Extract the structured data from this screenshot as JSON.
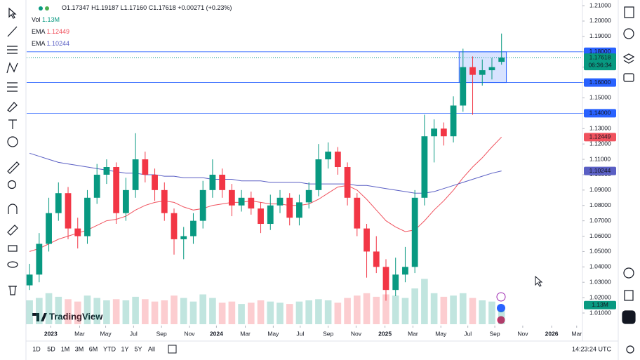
{
  "chart_data": {
    "type": "candlestick",
    "ohlc_letters": [
      "O",
      "H",
      "L",
      "C"
    ],
    "low_label": "1.17160",
    "change_label": "+0.00271 (+0.23%)",
    "volume_name": "Vol",
    "volume_label": "1.13M",
    "countdown": "06:36:34",
    "brand": "TradingView",
    "open": [
      1.028,
      1.035,
      1.055,
      1.075,
      1.088,
      1.065,
      1.06,
      1.085,
      1.1,
      1.105,
      1.075,
      1.09,
      1.11,
      1.1,
      1.09,
      1.075,
      1.058,
      1.06,
      1.07,
      1.09,
      1.1,
      1.09,
      1.08,
      1.085,
      1.078,
      1.068,
      1.08,
      1.085,
      1.072,
      1.082,
      1.09,
      1.11,
      1.115,
      1.105,
      1.085,
      1.065,
      1.05,
      1.04,
      1.025,
      1.035,
      1.04,
      1.085,
      1.125,
      1.13,
      1.125,
      1.145,
      1.17,
      1.165,
      1.168,
      1.17347
    ],
    "high": [
      1.042,
      1.062,
      1.085,
      1.095,
      1.092,
      1.072,
      1.09,
      1.107,
      1.11,
      1.108,
      1.098,
      1.127,
      1.115,
      1.104,
      1.095,
      1.078,
      1.066,
      1.075,
      1.096,
      1.11,
      1.104,
      1.094,
      1.09,
      1.089,
      1.082,
      1.087,
      1.09,
      1.088,
      1.087,
      1.095,
      1.12,
      1.121,
      1.118,
      1.108,
      1.088,
      1.068,
      1.06,
      1.045,
      1.046,
      1.053,
      1.09,
      1.139,
      1.136,
      1.134,
      1.151,
      1.182,
      1.177,
      1.175,
      1.176,
      1.19187
    ],
    "low": [
      1.025,
      1.03,
      1.05,
      1.07,
      1.058,
      1.052,
      1.055,
      1.081,
      1.094,
      1.068,
      1.07,
      1.085,
      1.095,
      1.083,
      1.07,
      1.048,
      1.045,
      1.055,
      1.065,
      1.085,
      1.085,
      1.073,
      1.076,
      1.074,
      1.062,
      1.064,
      1.075,
      1.067,
      1.067,
      1.078,
      1.086,
      1.104,
      1.1,
      1.08,
      1.06,
      1.033,
      1.036,
      1.018,
      1.021,
      1.03,
      1.036,
      1.08,
      1.108,
      1.119,
      1.121,
      1.141,
      1.139,
      1.158,
      1.162,
      1.1716
    ],
    "close": [
      1.035,
      1.055,
      1.075,
      1.088,
      1.065,
      1.06,
      1.085,
      1.1,
      1.105,
      1.075,
      1.09,
      1.11,
      1.1,
      1.09,
      1.075,
      1.058,
      1.06,
      1.07,
      1.09,
      1.1,
      1.09,
      1.08,
      1.085,
      1.078,
      1.068,
      1.08,
      1.085,
      1.072,
      1.082,
      1.09,
      1.11,
      1.115,
      1.105,
      1.085,
      1.065,
      1.05,
      1.04,
      1.025,
      1.035,
      1.04,
      1.085,
      1.125,
      1.13,
      1.125,
      1.145,
      1.17,
      1.165,
      1.168,
      1.17,
      1.17618
    ],
    "volume": [
      2.0,
      2.2,
      2.6,
      2.3,
      2.1,
      1.9,
      2.4,
      2.2,
      2.0,
      2.1,
      2.0,
      2.3,
      2.1,
      1.9,
      2.0,
      2.4,
      2.2,
      1.9,
      2.5,
      2.2,
      1.8,
      1.9,
      1.7,
      1.8,
      2.0,
      1.9,
      1.8,
      1.7,
      1.9,
      2.0,
      2.1,
      2.0,
      1.8,
      2.2,
      2.4,
      2.6,
      2.3,
      2.5,
      2.4,
      2.2,
      3.0,
      3.8,
      2.6,
      2.3,
      2.4,
      2.6,
      2.2,
      2.0,
      1.9,
      1.13
    ],
    "up_color": "#089981",
    "down_color": "#f23645",
    "series": [
      {
        "name": "EMA",
        "color": "#f0525e",
        "values": [
          1.05,
          1.052,
          1.055,
          1.058,
          1.06,
          1.062,
          1.064,
          1.067,
          1.07,
          1.071,
          1.073,
          1.077,
          1.08,
          1.082,
          1.083,
          1.082,
          1.079,
          1.077,
          1.078,
          1.08,
          1.081,
          1.082,
          1.082,
          1.083,
          1.082,
          1.081,
          1.081,
          1.08,
          1.08,
          1.081,
          1.084,
          1.088,
          1.092,
          1.093,
          1.09,
          1.084,
          1.077,
          1.07,
          1.066,
          1.063,
          1.064,
          1.07,
          1.077,
          1.083,
          1.09,
          1.098,
          1.105,
          1.111,
          1.118,
          1.12449
        ]
      },
      {
        "name": "EMA",
        "color": "#5a5fc4",
        "values": [
          1.114,
          1.112,
          1.11,
          1.108,
          1.107,
          1.106,
          1.105,
          1.104,
          1.103,
          1.102,
          1.101,
          1.101,
          1.1,
          1.1,
          1.099,
          1.099,
          1.098,
          1.098,
          1.098,
          1.097,
          1.097,
          1.097,
          1.096,
          1.096,
          1.096,
          1.095,
          1.095,
          1.095,
          1.095,
          1.094,
          1.094,
          1.094,
          1.094,
          1.094,
          1.093,
          1.093,
          1.092,
          1.091,
          1.09,
          1.089,
          1.088,
          1.088,
          1.089,
          1.091,
          1.093,
          1.095,
          1.097,
          1.099,
          1.101,
          1.10244
        ]
      }
    ],
    "hlines": [
      {
        "value": 1.18,
        "label": "1.18000"
      },
      {
        "value": 1.16,
        "label": "1.16000"
      },
      {
        "value": 1.14,
        "label": "1.14000"
      }
    ],
    "hline_color": "#2962ff",
    "box": {
      "x0": 44.6,
      "x1": 49.5,
      "y0": 1.16,
      "y1": 1.18
    },
    "xlim": [
      -0.3,
      57.4
    ],
    "ylim": [
      1.0027,
      1.2137
    ],
    "grid": false,
    "xticks": [
      {
        "value": 2.2,
        "label": "2023"
      },
      {
        "value": 5.2,
        "label": "Mar"
      },
      {
        "value": 7.9,
        "label": "May"
      },
      {
        "value": 10.8,
        "label": "Jul"
      },
      {
        "value": 13.7,
        "label": "Sep"
      },
      {
        "value": 16.6,
        "label": "Nov"
      },
      {
        "value": 19.4,
        "label": "2024"
      },
      {
        "value": 22.4,
        "label": "Mar"
      },
      {
        "value": 25.3,
        "label": "May"
      },
      {
        "value": 28.1,
        "label": "Jul"
      },
      {
        "value": 31.0,
        "label": "Sep"
      },
      {
        "value": 33.9,
        "label": "Nov"
      },
      {
        "value": 36.9,
        "label": "2025"
      },
      {
        "value": 39.8,
        "label": "Mar"
      },
      {
        "value": 42.7,
        "label": "May"
      },
      {
        "value": 45.5,
        "label": "Jul"
      },
      {
        "value": 48.3,
        "label": "Sep"
      },
      {
        "value": 51.2,
        "label": "Nov"
      },
      {
        "value": 54.2,
        "label": "2026"
      },
      {
        "value": 56.8,
        "label": "Mar"
      }
    ],
    "yticks": [
      {
        "value": 1.01,
        "label": "1.01000"
      },
      {
        "value": 1.02,
        "label": "1.02000"
      },
      {
        "value": 1.03,
        "label": "1.03000"
      },
      {
        "value": 1.04,
        "label": "1.04000"
      },
      {
        "value": 1.05,
        "label": "1.05000"
      },
      {
        "value": 1.06,
        "label": "1.06000"
      },
      {
        "value": 1.07,
        "label": "1.07000"
      },
      {
        "value": 1.08,
        "label": "1.08000"
      },
      {
        "value": 1.09,
        "label": "1.09000"
      },
      {
        "value": 1.1,
        "label": "1.10000"
      },
      {
        "value": 1.11,
        "label": "1.11000"
      },
      {
        "value": 1.12,
        "label": "1.12000"
      },
      {
        "value": 1.13,
        "label": "1.13000"
      },
      {
        "value": 1.14,
        "label": "1.14000"
      },
      {
        "value": 1.15,
        "label": "1.15000"
      },
      {
        "value": 1.16,
        "label": "1.16000"
      },
      {
        "value": 1.17,
        "label": "1.17000"
      },
      {
        "value": 1.18,
        "label": "1.18000"
      },
      {
        "value": 1.19,
        "label": "1.19000"
      },
      {
        "value": 1.2,
        "label": "1.20000"
      },
      {
        "value": 1.21,
        "label": "1.21000"
      }
    ]
  },
  "toolbar": {
    "ranges": [
      "1D",
      "5D",
      "1M",
      "3M",
      "6M",
      "YTD",
      "1Y",
      "5Y",
      "All"
    ],
    "clock": "14:23:24 UTC"
  }
}
